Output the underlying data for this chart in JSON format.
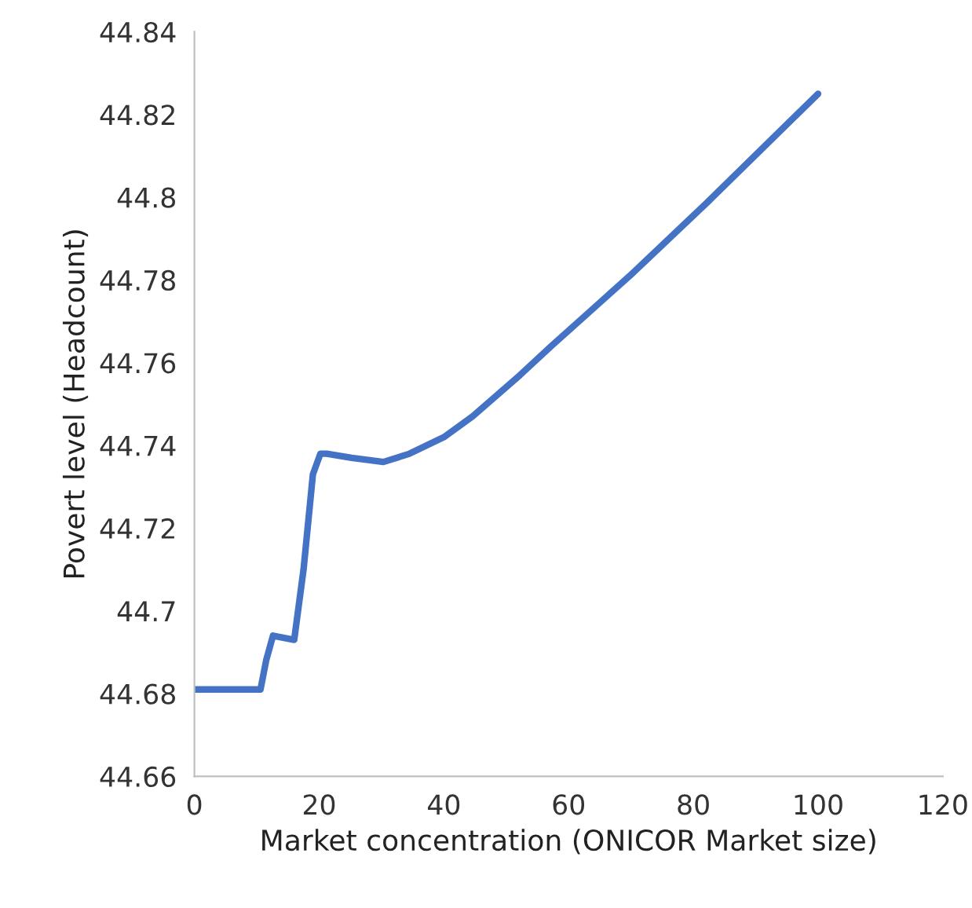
{
  "chart_data": {
    "type": "line",
    "xlabel": "Market concentration (ONICOR Market size)",
    "ylabel": "Povert level (Headcount)",
    "x": [
      0,
      10.6,
      11.5,
      12.6,
      16.0,
      17.5,
      19.0,
      20.2,
      21.2,
      25.2,
      30.3,
      34.5,
      40,
      44.6,
      52.2,
      57.2,
      69.8,
      82.4,
      100
    ],
    "series": [
      {
        "color": "#4472c4",
        "values": [
          44.681,
          44.681,
          44.688,
          44.694,
          44.693,
          44.71,
          44.733,
          44.738,
          44.738,
          44.737,
          44.736,
          44.738,
          44.742,
          44.747,
          44.757,
          44.764,
          44.781,
          44.799,
          44.825
        ]
      }
    ],
    "xlim": [
      0,
      120
    ],
    "xticks": [
      0,
      20,
      40,
      60,
      80,
      100,
      120
    ],
    "ylim": [
      44.66,
      44.84
    ],
    "yticks": [
      44.66,
      44.68,
      44.7,
      44.72,
      44.74,
      44.76,
      44.78,
      44.8,
      44.82,
      44.84
    ],
    "grid": false,
    "legend": false,
    "marker": "none",
    "line_style": "solid"
  }
}
